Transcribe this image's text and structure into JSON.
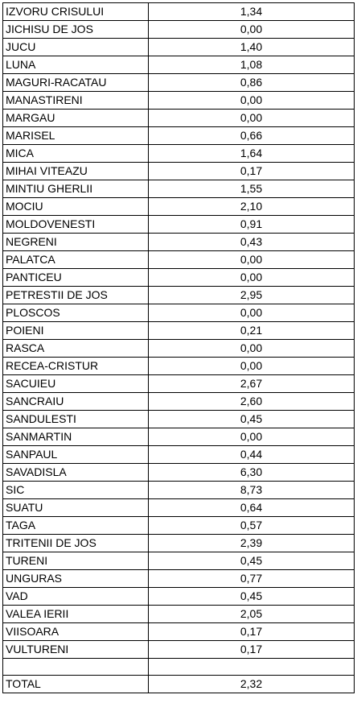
{
  "rows": [
    {
      "name": "IZVORU CRISULUI",
      "value": "1,34"
    },
    {
      "name": "JICHISU DE JOS",
      "value": "0,00"
    },
    {
      "name": "JUCU",
      "value": "1,40"
    },
    {
      "name": "LUNA",
      "value": "1,08"
    },
    {
      "name": "MAGURI-RACATAU",
      "value": "0,86"
    },
    {
      "name": "MANASTIRENI",
      "value": "0,00"
    },
    {
      "name": "MARGAU",
      "value": "0,00"
    },
    {
      "name": "MARISEL",
      "value": "0,66"
    },
    {
      "name": "MICA",
      "value": "1,64"
    },
    {
      "name": "MIHAI VITEAZU",
      "value": "0,17"
    },
    {
      "name": "MINTIU GHERLII",
      "value": "1,55"
    },
    {
      "name": "MOCIU",
      "value": "2,10"
    },
    {
      "name": "MOLDOVENESTI",
      "value": "0,91"
    },
    {
      "name": "NEGRENI",
      "value": "0,43"
    },
    {
      "name": "PALATCA",
      "value": "0,00"
    },
    {
      "name": "PANTICEU",
      "value": "0,00"
    },
    {
      "name": "PETRESTII DE JOS",
      "value": "2,95"
    },
    {
      "name": "PLOSCOS",
      "value": "0,00"
    },
    {
      "name": "POIENI",
      "value": "0,21"
    },
    {
      "name": "RASCA",
      "value": "0,00"
    },
    {
      "name": "RECEA-CRISTUR",
      "value": "0,00"
    },
    {
      "name": "SACUIEU",
      "value": "2,67"
    },
    {
      "name": "SANCRAIU",
      "value": "2,60"
    },
    {
      "name": "SANDULESTI",
      "value": "0,45"
    },
    {
      "name": "SANMARTIN",
      "value": "0,00"
    },
    {
      "name": "SANPAUL",
      "value": "0,44"
    },
    {
      "name": "SAVADISLA",
      "value": "6,30"
    },
    {
      "name": "SIC",
      "value": "8,73"
    },
    {
      "name": "SUATU",
      "value": "0,64"
    },
    {
      "name": "TAGA",
      "value": "0,57"
    },
    {
      "name": "TRITENII DE JOS",
      "value": "2,39"
    },
    {
      "name": "TURENI",
      "value": "0,45"
    },
    {
      "name": "UNGURAS",
      "value": "0,77"
    },
    {
      "name": "VAD",
      "value": "0,45"
    },
    {
      "name": "VALEA IERII",
      "value": "2,05"
    },
    {
      "name": "VIISOARA",
      "value": "0,17"
    },
    {
      "name": "VULTURENI",
      "value": "0,17"
    },
    {
      "name": "",
      "value": ""
    },
    {
      "name": "TOTAL",
      "value": "2,32"
    }
  ]
}
